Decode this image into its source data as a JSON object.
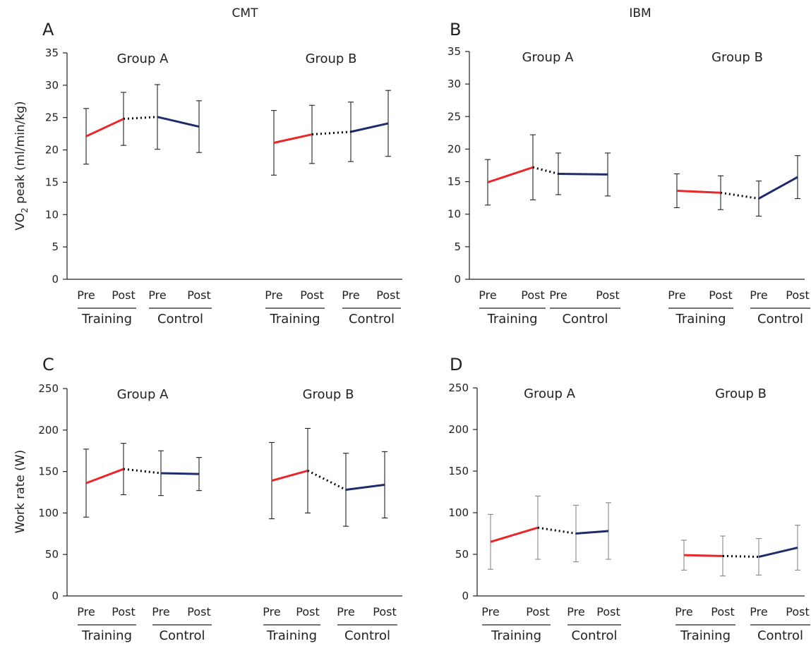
{
  "columns": [
    "CMT",
    "IBM"
  ],
  "y_labels": {
    "vo2": {
      "main": "VO",
      "sub": "2",
      "rest": " peak (ml/min/kg)"
    },
    "work": "Work rate (W)"
  },
  "condition_labels": [
    "Pre",
    "Post",
    "Pre",
    "Post"
  ],
  "arm_labels": [
    "Training",
    "Control"
  ],
  "colors": {
    "training": "#e8272a",
    "control": "#1f2c6b",
    "connector": "#000000",
    "errorbar_black": "#222222",
    "errorbar_gray": "#888888"
  },
  "chart_data": [
    {
      "panel": "A",
      "column": "CMT",
      "type": "line",
      "ylabel": "VO2 peak (ml/min/kg)",
      "ylim": [
        0,
        35
      ],
      "yticks": [
        0,
        5,
        10,
        15,
        20,
        25,
        30,
        35
      ],
      "errorbar_color": "errorbar_black",
      "groups": [
        {
          "name": "Group A",
          "values": [
            22.1,
            24.8,
            25.1,
            23.6
          ],
          "errors": [
            4.3,
            4.1,
            5.0,
            4.0
          ]
        },
        {
          "name": "Group B",
          "values": [
            21.1,
            22.4,
            22.8,
            24.1
          ],
          "errors": [
            5.0,
            4.5,
            4.6,
            5.1
          ]
        }
      ]
    },
    {
      "panel": "B",
      "column": "IBM",
      "type": "line",
      "ylabel": "",
      "ylim": [
        0,
        35
      ],
      "yticks": [
        0,
        5,
        10,
        15,
        20,
        25,
        30,
        35
      ],
      "errorbar_color": "errorbar_black",
      "groups": [
        {
          "name": "Group A",
          "values": [
            14.9,
            17.2,
            16.2,
            16.1
          ],
          "errors": [
            3.5,
            5.0,
            3.2,
            3.3
          ]
        },
        {
          "name": "Group B",
          "values": [
            13.6,
            13.3,
            12.4,
            15.7
          ],
          "errors": [
            2.6,
            2.6,
            2.7,
            3.3
          ]
        }
      ]
    },
    {
      "panel": "C",
      "column": "CMT",
      "type": "line",
      "ylabel": "Work rate (W)",
      "ylim": [
        0,
        250
      ],
      "yticks": [
        0,
        50,
        100,
        150,
        200,
        250
      ],
      "errorbar_color": "errorbar_black",
      "groups": [
        {
          "name": "Group A",
          "values": [
            136,
            153,
            148,
            147
          ],
          "errors": [
            41,
            31,
            27,
            20
          ]
        },
        {
          "name": "Group B",
          "values": [
            139,
            151,
            128,
            134
          ],
          "errors": [
            46,
            51,
            44,
            40
          ]
        }
      ]
    },
    {
      "panel": "D",
      "column": "IBM",
      "type": "line",
      "ylabel": "",
      "ylim": [
        0,
        250
      ],
      "yticks": [
        0,
        50,
        100,
        150,
        200,
        250
      ],
      "errorbar_color": "errorbar_gray",
      "groups": [
        {
          "name": "Group A",
          "values": [
            65,
            82,
            75,
            78
          ],
          "errors": [
            33,
            38,
            34,
            34
          ]
        },
        {
          "name": "Group B",
          "values": [
            49,
            48,
            47,
            58
          ],
          "errors": [
            18,
            24,
            22,
            27
          ]
        }
      ]
    }
  ]
}
